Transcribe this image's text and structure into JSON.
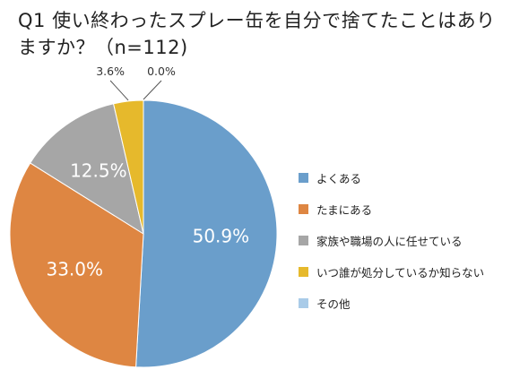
{
  "chart": {
    "title": "Q1 使い終わったスプレー缶を自分で捨てたことはありますか？（n=112)"
  },
  "chart_data": {
    "type": "pie",
    "title": "Q1 使い終わったスプレー缶を自分で捨てたことはありますか？（n=112)",
    "unit": "%",
    "start_angle_deg": 0,
    "direction": "clockwise",
    "legend_position": "right",
    "slices": [
      {
        "label": "よくある",
        "value": 50.9,
        "value_label": "50.9%",
        "color": "#6a9ecb",
        "label_placement": "inside"
      },
      {
        "label": "たまにある",
        "value": 33.0,
        "value_label": "33.0%",
        "color": "#de8642",
        "label_placement": "inside"
      },
      {
        "label": "家族や職場の人に任せている",
        "value": 12.5,
        "value_label": "12.5%",
        "color": "#a6a6a6",
        "label_placement": "inside"
      },
      {
        "label": "いつ誰が処分しているか知らない",
        "value": 3.6,
        "value_label": "3.6%",
        "color": "#e6b92c",
        "label_placement": "outside"
      },
      {
        "label": "その他",
        "value": 0.0,
        "value_label": "0.0%",
        "color": "#a9cbe8",
        "label_placement": "outside"
      }
    ]
  }
}
